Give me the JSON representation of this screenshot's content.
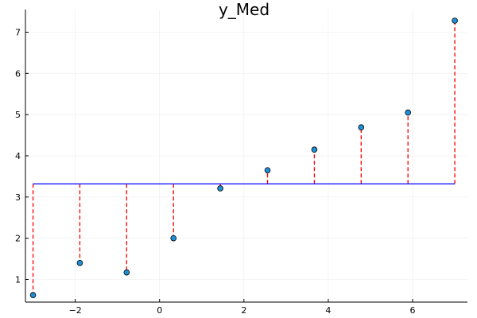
{
  "chart_data": {
    "type": "scatter",
    "title": "y_Med",
    "xlabel": "",
    "ylabel": "",
    "xlim": [
      -3.18,
      7.3
    ],
    "ylim": [
      0.45,
      7.55
    ],
    "x_ticks": [
      -2,
      0,
      2,
      4,
      6
    ],
    "y_ticks": [
      1,
      2,
      3,
      4,
      5,
      6,
      7
    ],
    "grid": true,
    "legend": "none",
    "reference_line": {
      "y": 3.32,
      "x_range": [
        -3.0,
        7.0
      ]
    },
    "series": [
      {
        "x": [
          -3.0,
          -1.89,
          -0.78,
          0.33,
          1.44,
          2.56,
          3.67,
          4.78,
          5.89,
          7.0
        ],
        "y": [
          0.62,
          1.4,
          1.17,
          2.0,
          3.21,
          3.65,
          4.15,
          4.69,
          5.05,
          7.28
        ]
      }
    ],
    "colors": {
      "points": "#1f8fd6",
      "point_edge": "#000000",
      "reference_line": "#0000ff",
      "residuals": "#ff0000",
      "grid": "#ececec",
      "axis": "#000000"
    }
  }
}
